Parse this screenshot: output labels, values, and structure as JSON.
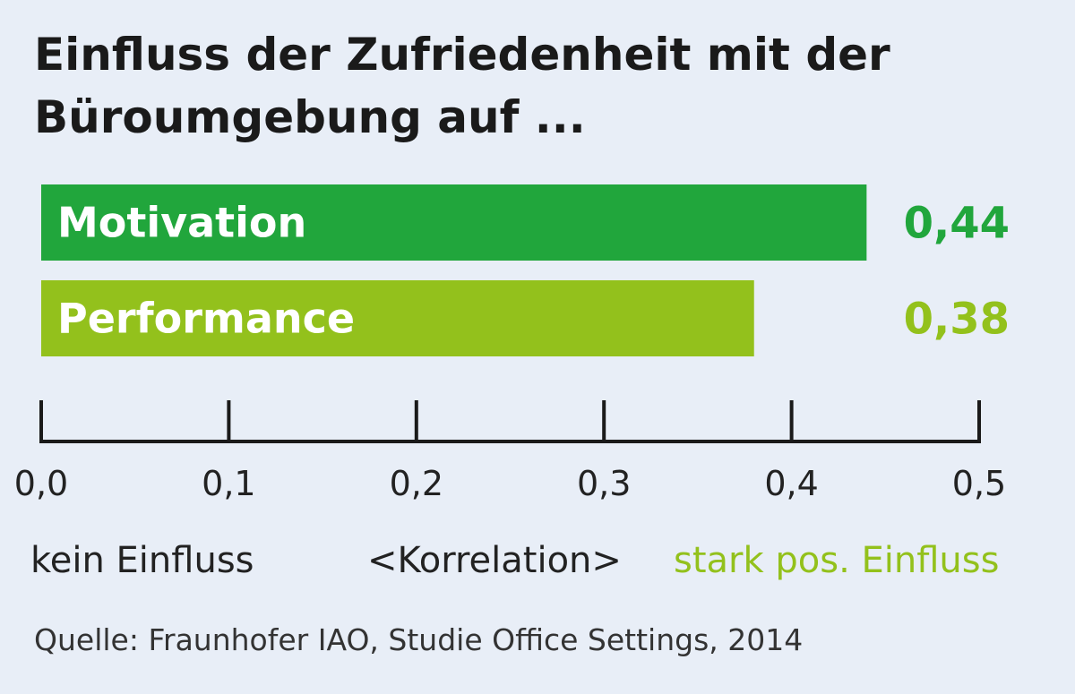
{
  "title_lines": [
    "Einfluss der Zufriedenheit mit der",
    "Büroumgebung auf ..."
  ],
  "chart_data": {
    "type": "bar",
    "orientation": "horizontal",
    "categories": [
      "Motivation",
      "Performance"
    ],
    "values": [
      0.44,
      0.38
    ],
    "value_labels": [
      "0,44",
      "0,38"
    ],
    "colors": [
      "#21a63c",
      "#93c11c"
    ],
    "xlim": [
      0,
      0.5
    ],
    "xticks": [
      0,
      0.1,
      0.2,
      0.3,
      0.4,
      0.5
    ],
    "xtick_labels": [
      "0,0",
      "0,1",
      "0,2",
      "0,3",
      "0,4",
      "0,5"
    ],
    "grid": false
  },
  "scale_captions": {
    "left": "kein Einfluss",
    "center": "<Korrelation>",
    "right": "stark pos. Einfluss",
    "right_color": "#93c11c"
  },
  "source": "Quelle: Fraunhofer IAO, Studie Office Settings, 2014"
}
